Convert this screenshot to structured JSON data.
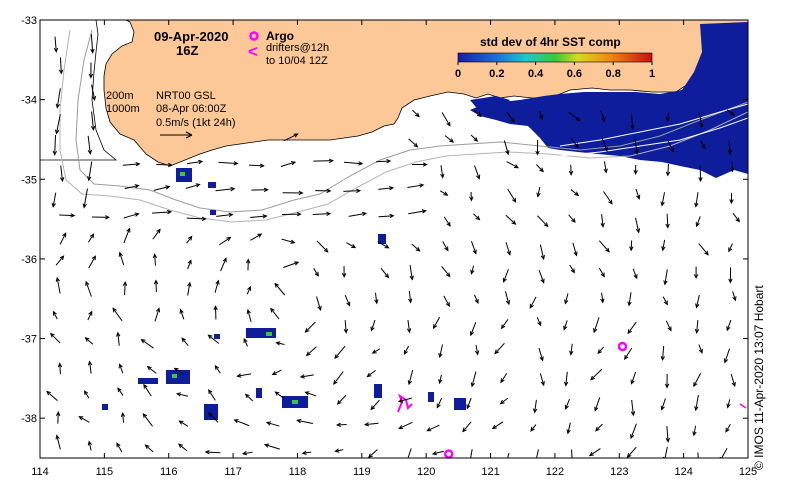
{
  "map": {
    "date": "09-Apr-2020",
    "hour": "16Z",
    "legend_argo": "Argo",
    "legend_drifters": "drifters@12h",
    "legend_drifters_range": "to 10/04 12Z",
    "isobath_200": "200m",
    "isobath_1000": "1000m",
    "current_source": "NRT00 GSL",
    "current_time": "08-Apr 06:00Z",
    "vector_scale": "0.5m/s (1kt 24h)",
    "colorbar_title": "std dev of 4hr SST comp",
    "colorbar_ticks": [
      "0",
      "0.2",
      "0.4",
      "0.6",
      "0.8",
      "1"
    ],
    "credit": "© IMOS 11-Apr-2020 13:07 Hobart",
    "x_ticks": [
      "114",
      "115",
      "116",
      "117",
      "118",
      "119",
      "120",
      "121",
      "122",
      "123",
      "124",
      "125"
    ],
    "y_ticks": [
      "-33",
      "-34",
      "-35",
      "-36",
      "-37",
      "-38"
    ],
    "x_range": [
      114,
      125
    ],
    "y_range": [
      -38.5,
      -33
    ],
    "colors": {
      "land": "#fdc898",
      "argo": "#ff00ff",
      "drifter": "#ff00ff",
      "sst_blue": "#0d1d9c"
    }
  },
  "chart_data": {
    "type": "scatter",
    "xlabel": "",
    "ylabel": "",
    "xlim": [
      114,
      125
    ],
    "ylim": [
      -38.5,
      -33
    ],
    "series": [
      {
        "name": "Argo",
        "x": [
          123.05,
          120.35
        ],
        "y": [
          -37.1,
          -38.45
        ]
      }
    ]
  }
}
